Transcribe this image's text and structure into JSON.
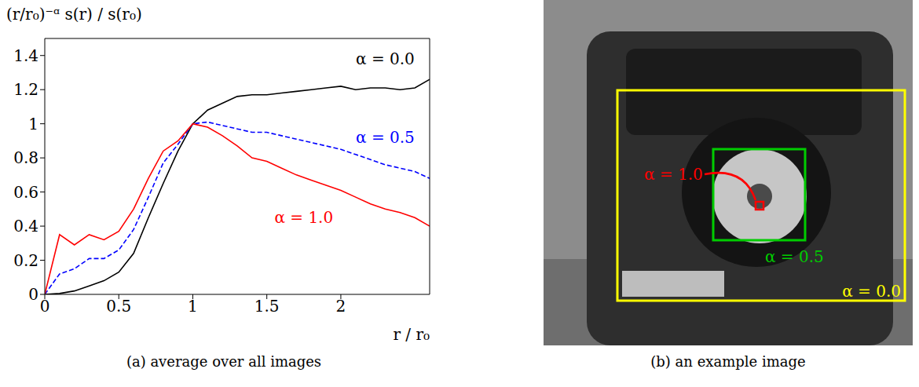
{
  "chart_data": {
    "type": "line",
    "caption": "(a) average over all images",
    "x_label": "r / r₀",
    "y_label": "(r/r₀)⁻ᵅ s(r) / s(r₀)",
    "x": [
      0,
      0.1,
      0.2,
      0.3,
      0.4,
      0.5,
      0.6,
      0.7,
      0.8,
      0.9,
      1,
      1.1,
      1.2,
      1.3,
      1.4,
      1.5,
      1.6,
      1.7,
      1.8,
      1.9,
      2,
      2.1,
      2.2,
      2.3,
      2.4,
      2.5,
      2.6
    ],
    "xlim": [
      0,
      2.6
    ],
    "xticks": [
      0,
      0.5,
      1,
      1.5,
      2
    ],
    "ylim": [
      0,
      1.5
    ],
    "yticks": [
      0,
      0.2,
      0.4,
      0.6,
      0.8,
      1,
      1.2,
      1.4
    ],
    "grid": false,
    "series": [
      {
        "name": "α = 0.0",
        "color": "#000000",
        "line_style": "solid",
        "values": [
          0,
          0.005,
          0.02,
          0.05,
          0.08,
          0.13,
          0.24,
          0.45,
          0.65,
          0.84,
          1,
          1.08,
          1.12,
          1.16,
          1.17,
          1.17,
          1.18,
          1.19,
          1.2,
          1.21,
          1.22,
          1.2,
          1.21,
          1.21,
          1.2,
          1.21,
          1.26
        ]
      },
      {
        "name": "α = 0.5",
        "color": "#0000ff",
        "line_style": "dashed",
        "values": [
          0,
          0.12,
          0.15,
          0.21,
          0.21,
          0.26,
          0.38,
          0.57,
          0.77,
          0.88,
          1,
          1.01,
          0.99,
          0.97,
          0.95,
          0.95,
          0.93,
          0.91,
          0.89,
          0.87,
          0.85,
          0.82,
          0.79,
          0.76,
          0.74,
          0.72,
          0.68
        ]
      },
      {
        "name": "α = 1.0",
        "color": "#ff0000",
        "line_style": "solid",
        "values": [
          0,
          0.35,
          0.29,
          0.35,
          0.32,
          0.37,
          0.5,
          0.68,
          0.84,
          0.9,
          1,
          0.98,
          0.93,
          0.87,
          0.8,
          0.78,
          0.74,
          0.7,
          0.67,
          0.64,
          0.61,
          0.57,
          0.53,
          0.5,
          0.48,
          0.45,
          0.4
        ]
      }
    ],
    "annotations": [
      {
        "text": "α = 0.0",
        "x": 2.3,
        "y": 1.38,
        "color": "#000000"
      },
      {
        "text": "α = 0.5",
        "x": 2.3,
        "y": 0.92,
        "color": "#0000ff"
      },
      {
        "text": "α = 1.0",
        "x": 1.75,
        "y": 0.45,
        "color": "#ff0000"
      }
    ]
  },
  "image_panel": {
    "caption": "(b) an example image",
    "regions": [
      {
        "label": "α = 0.0",
        "color": "#ffff00"
      },
      {
        "label": "α = 0.5",
        "color": "#00cc00"
      },
      {
        "label": "α = 1.0",
        "color": "#ff0000"
      }
    ]
  }
}
